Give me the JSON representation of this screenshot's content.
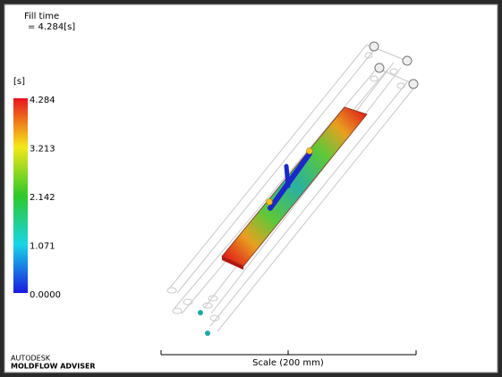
{
  "result": {
    "title": "Fill time",
    "value": "= 4.284[s]"
  },
  "legend": {
    "unit": "[s]",
    "ticks": [
      "4.284",
      "3.213",
      "2.142",
      "1.071",
      "0.0000"
    ]
  },
  "scale": {
    "label": "Scale (200 mm)"
  },
  "brand": {
    "company": "AUTODESK",
    "product": "MOLDFLOW ADVISER"
  }
}
